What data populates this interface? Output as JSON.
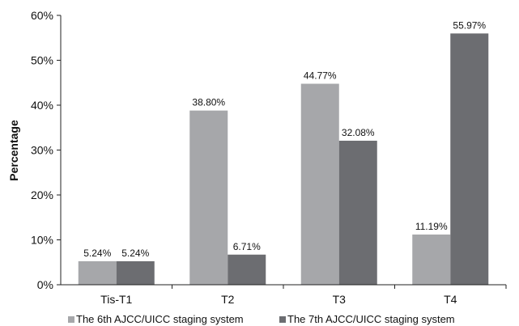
{
  "chart_data": {
    "type": "bar",
    "title": "",
    "xlabel": "",
    "ylabel": "Percentage",
    "ylim": [
      0,
      60
    ],
    "yticks": [
      "0%",
      "10%",
      "20%",
      "30%",
      "40%",
      "50%",
      "60%"
    ],
    "categories": [
      "Tis-T1",
      "T2",
      "T3",
      "T4"
    ],
    "series": [
      {
        "name": "The 6th AJCC/UICC staging system",
        "color": "#a6a7aa",
        "values": [
          5.24,
          38.8,
          44.77,
          11.19
        ],
        "labels": [
          "5.24%",
          "38.80%",
          "44.77%",
          "11.19%"
        ]
      },
      {
        "name": "The 7th AJCC/UICC staging system",
        "color": "#6c6d71",
        "values": [
          5.24,
          6.71,
          32.08,
          55.97
        ],
        "labels": [
          "5.24%",
          "6.71%",
          "32.08%",
          "55.97%"
        ]
      }
    ],
    "grid": false,
    "legend_position": "bottom"
  }
}
